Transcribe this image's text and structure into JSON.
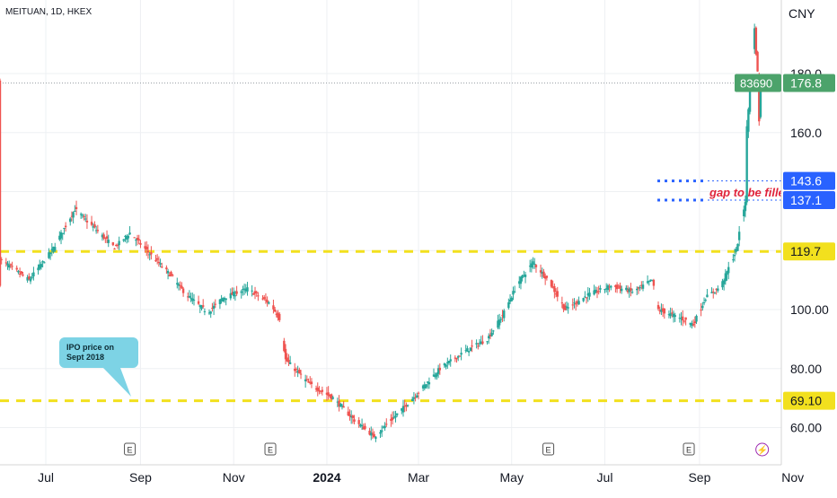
{
  "header": {
    "symbol_label": "MEITUAN, 1D, HKEX",
    "currency": "CNY"
  },
  "colors": {
    "up": "#26a69a",
    "down": "#ef5350",
    "support": "#f2e01e",
    "gap": "#2962ff",
    "last_price": "#4ca36b",
    "annotation_text": "#e0243b",
    "callout": "#7dd3e5"
  },
  "chart_data": {
    "type": "candlestick",
    "ylim": [
      50,
      200
    ],
    "xlim": [
      "2023-06-01",
      "2024-11-30"
    ],
    "yticks": [
      "60.00",
      "80.00",
      "100.00",
      "160.0",
      "180.0"
    ],
    "xticks": [
      {
        "label": "Jul",
        "date": "2023-07-01"
      },
      {
        "label": "Sep",
        "date": "2023-09-01"
      },
      {
        "label": "Nov",
        "date": "2023-11-01"
      },
      {
        "label": "2024",
        "date": "2024-01-01"
      },
      {
        "label": "Mar",
        "date": "2024-03-01"
      },
      {
        "label": "May",
        "date": "2024-05-01"
      },
      {
        "label": "Jul",
        "date": "2024-07-01"
      },
      {
        "label": "Sep",
        "date": "2024-09-01"
      },
      {
        "label": "Nov",
        "date": "2024-11-01"
      }
    ],
    "series": [
      {
        "values": [
          {
            "x": "2023-06-01",
            "y": 117
          },
          {
            "x": "2023-06-20",
            "y": 110
          },
          {
            "x": "2023-07-05",
            "y": 120
          },
          {
            "x": "2023-07-20",
            "y": 134
          },
          {
            "x": "2023-08-01",
            "y": 128
          },
          {
            "x": "2023-08-15",
            "y": 121
          },
          {
            "x": "2023-08-25",
            "y": 126
          },
          {
            "x": "2023-09-05",
            "y": 120
          },
          {
            "x": "2023-09-20",
            "y": 112
          },
          {
            "x": "2023-10-01",
            "y": 105
          },
          {
            "x": "2023-10-15",
            "y": 99
          },
          {
            "x": "2023-10-25",
            "y": 104
          },
          {
            "x": "2023-11-10",
            "y": 107
          },
          {
            "x": "2023-11-25",
            "y": 102
          },
          {
            "x": "2023-12-01",
            "y": 97
          },
          {
            "x": "2023-12-05",
            "y": 83
          },
          {
            "x": "2023-12-20",
            "y": 75
          },
          {
            "x": "2024-01-05",
            "y": 70
          },
          {
            "x": "2024-01-20",
            "y": 62
          },
          {
            "x": "2024-02-01",
            "y": 57
          },
          {
            "x": "2024-02-15",
            "y": 64
          },
          {
            "x": "2024-03-01",
            "y": 72
          },
          {
            "x": "2024-03-15",
            "y": 80
          },
          {
            "x": "2024-04-01",
            "y": 86
          },
          {
            "x": "2024-04-15",
            "y": 90
          },
          {
            "x": "2024-04-25",
            "y": 98
          },
          {
            "x": "2024-05-05",
            "y": 109
          },
          {
            "x": "2024-05-15",
            "y": 116
          },
          {
            "x": "2024-05-25",
            "y": 110
          },
          {
            "x": "2024-06-05",
            "y": 100
          },
          {
            "x": "2024-06-20",
            "y": 105
          },
          {
            "x": "2024-07-05",
            "y": 108
          },
          {
            "x": "2024-07-20",
            "y": 106
          },
          {
            "x": "2024-08-01",
            "y": 110
          },
          {
            "x": "2024-08-05",
            "y": 100
          },
          {
            "x": "2024-08-20",
            "y": 97
          },
          {
            "x": "2024-08-28",
            "y": 95
          },
          {
            "x": "2024-09-05",
            "y": 104
          },
          {
            "x": "2024-09-15",
            "y": 108
          },
          {
            "x": "2024-09-25",
            "y": 120
          },
          {
            "x": "2024-10-01",
            "y": 137
          },
          {
            "x": "2024-10-02",
            "y": 160
          },
          {
            "x": "2024-10-04",
            "y": 176
          },
          {
            "x": "2024-10-07",
            "y": 195
          },
          {
            "x": "2024-10-09",
            "y": 180
          },
          {
            "x": "2024-10-10",
            "y": 165
          },
          {
            "x": "2024-10-11",
            "y": 176.8
          }
        ]
      }
    ],
    "horizontal_lines": [
      {
        "value": 119.7,
        "label": "119.7",
        "style": "dashed",
        "color": "#f2e01e"
      },
      {
        "value": 69.1,
        "label": "69.10",
        "style": "dashed",
        "color": "#f2e01e"
      },
      {
        "value": 143.6,
        "label": "143.6",
        "style": "dotted",
        "color": "#2962ff"
      },
      {
        "value": 137.1,
        "label": "137.1",
        "style": "dotted",
        "color": "#2962ff"
      }
    ],
    "last_price": {
      "value": 176.8,
      "label": "176.8",
      "volume_label": "83690"
    },
    "annotations": [
      {
        "text": "gap to be filled",
        "color": "#e0243b"
      },
      {
        "text": "IPO price on\nSept 2018",
        "type": "callout"
      }
    ],
    "event_markers": [
      {
        "label": "E",
        "date": "2023-08-25"
      },
      {
        "label": "E",
        "date": "2023-11-25"
      },
      {
        "label": "E",
        "date": "2024-05-25"
      },
      {
        "label": "E",
        "date": "2024-08-25"
      },
      {
        "label": "⚡",
        "date": "2024-10-12"
      }
    ]
  }
}
